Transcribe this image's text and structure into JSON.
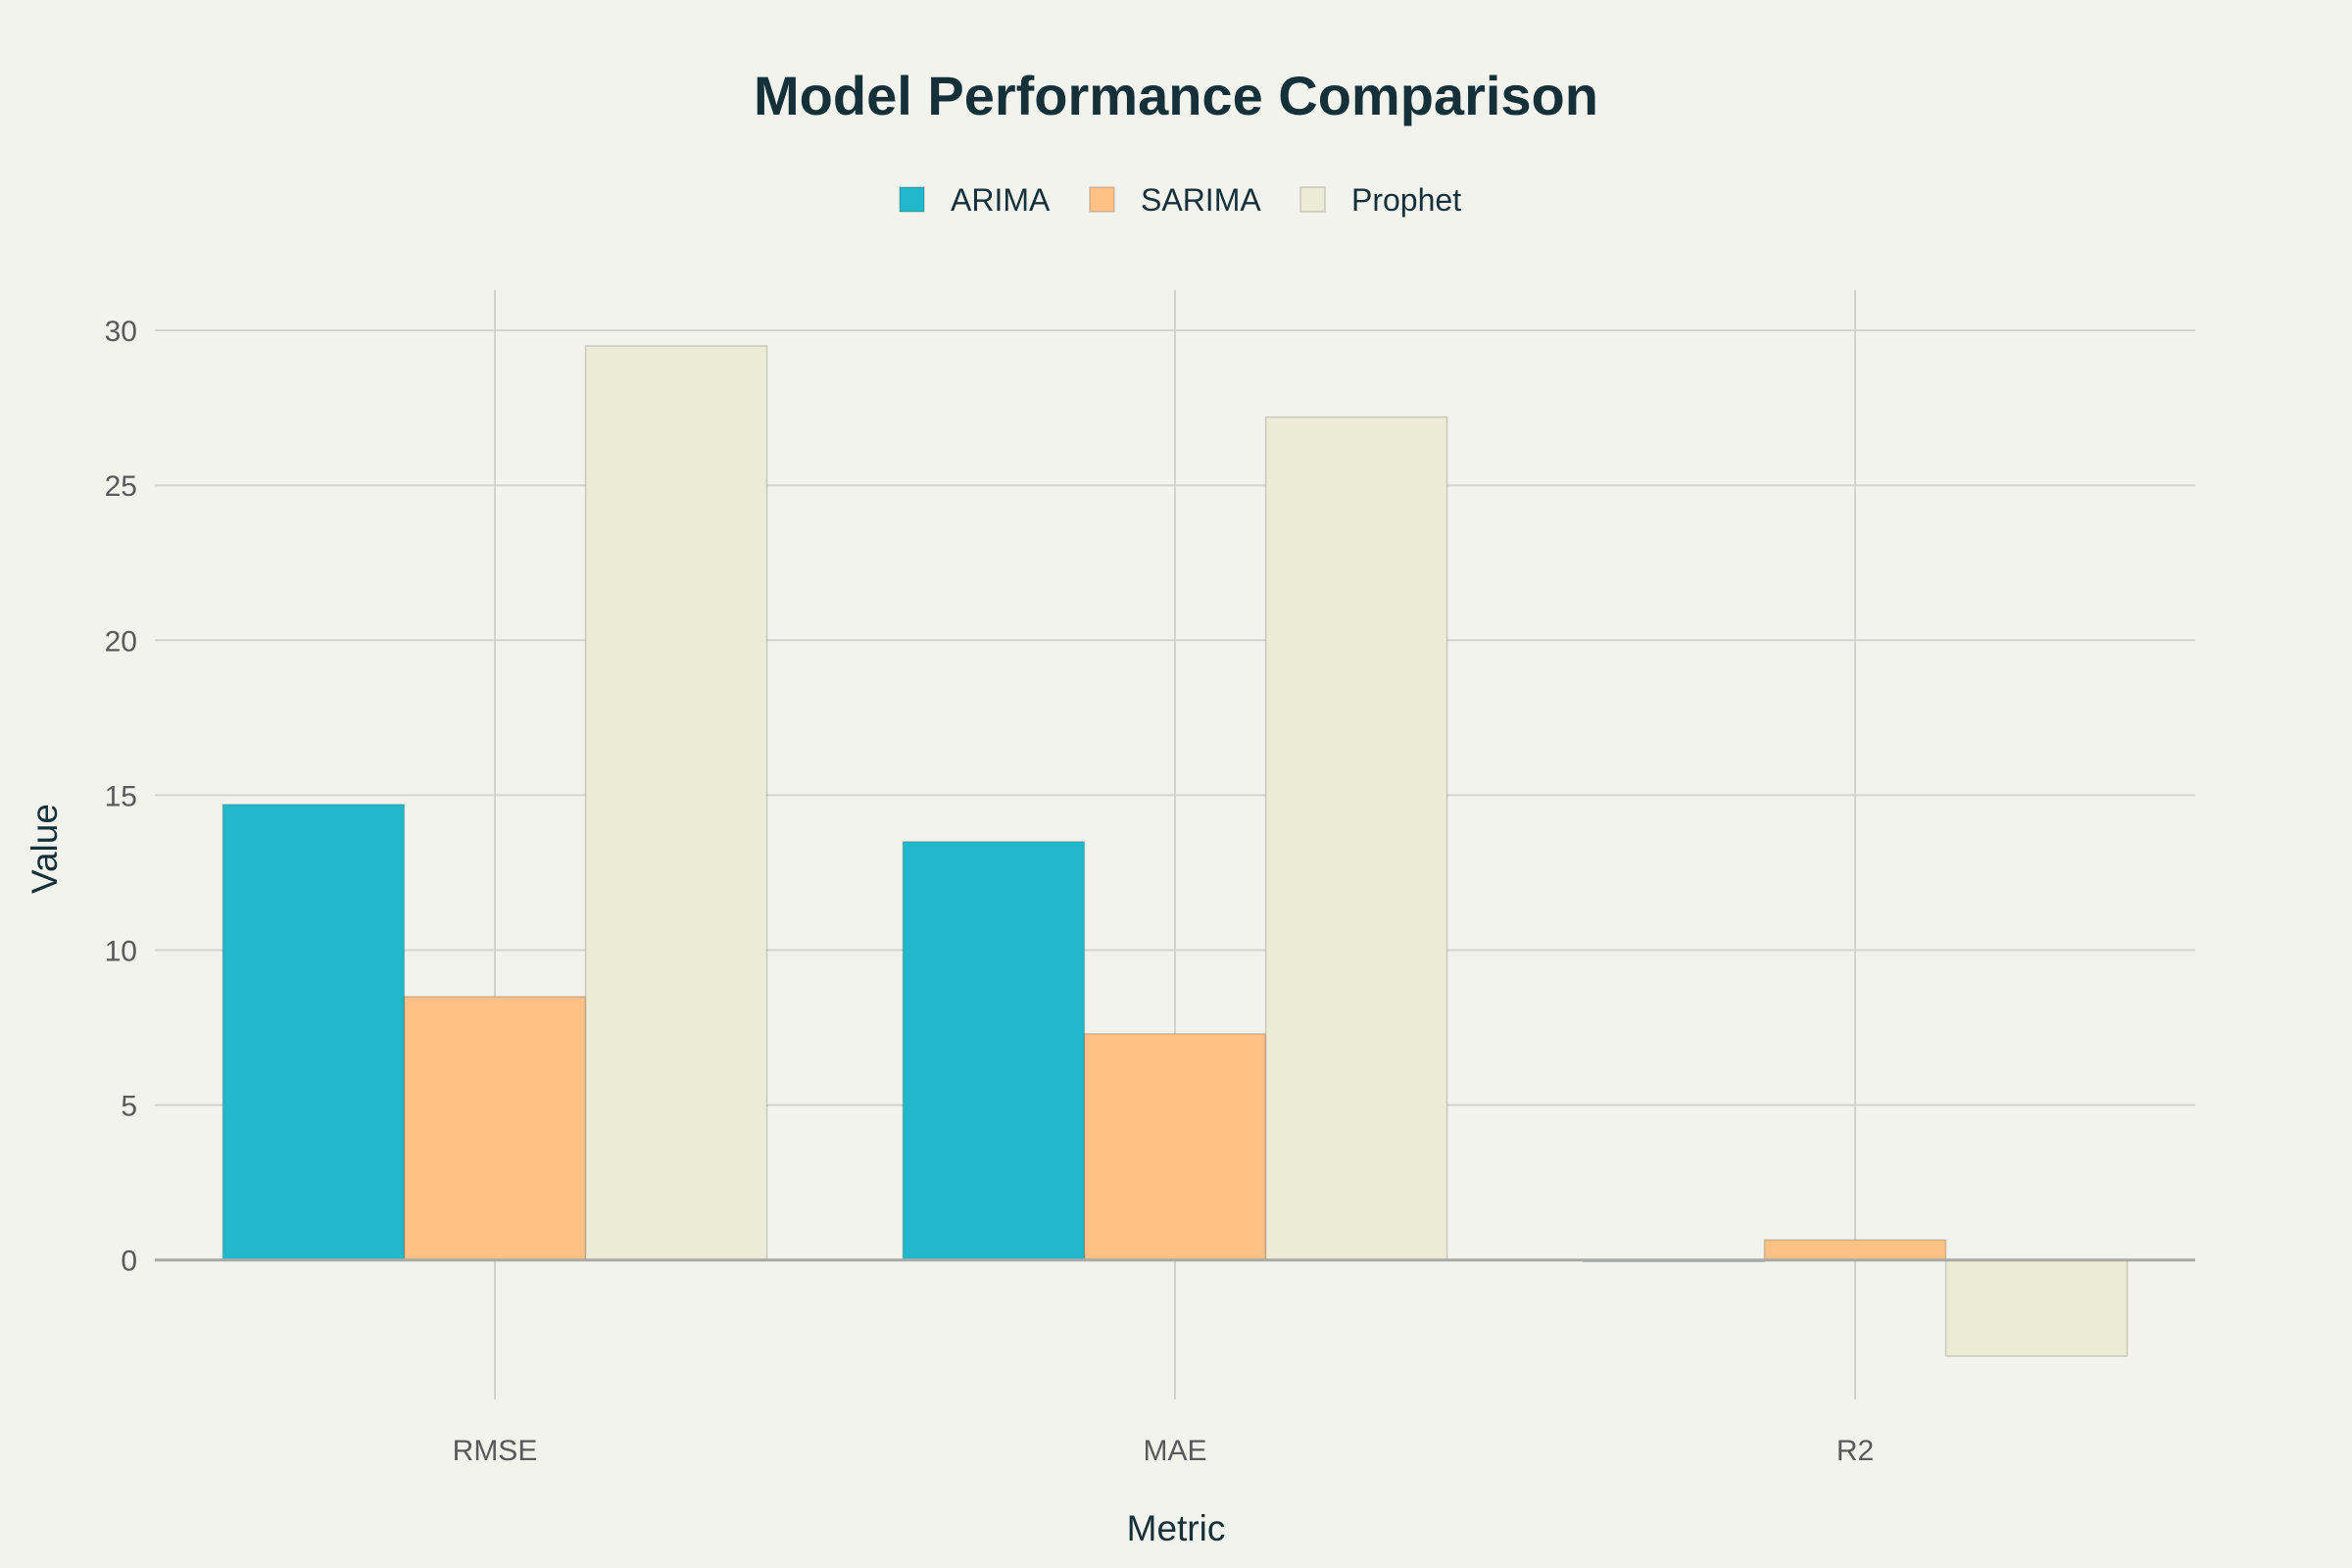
{
  "chart_data": {
    "type": "bar",
    "title": "Model Performance Comparison",
    "xlabel": "Metric",
    "ylabel": "Value",
    "categories": [
      "RMSE",
      "MAE",
      "R2"
    ],
    "series": [
      {
        "name": "ARIMA",
        "color": "#21b8cc",
        "values": [
          14.7,
          13.5,
          -0.05
        ]
      },
      {
        "name": "SARIMA",
        "color": "#ffc185",
        "values": [
          8.5,
          7.3,
          0.65
        ]
      },
      {
        "name": "Prophet",
        "color": "#ecebd5",
        "values": [
          29.5,
          27.2,
          -3.1
        ]
      }
    ],
    "ylim": [
      -4.5,
      31.3
    ],
    "yticks": [
      0,
      5,
      10,
      15,
      20,
      25,
      30
    ],
    "grid": true,
    "legend_position": "top-center"
  }
}
